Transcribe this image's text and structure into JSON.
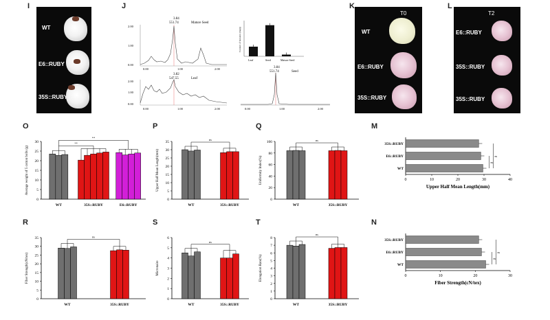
{
  "panels": {
    "I": {
      "letter": "I",
      "labels": [
        "WT",
        "E6::RUBY",
        "35S::RUBY"
      ]
    },
    "J": {
      "letter": "J",
      "top_left": {
        "peak_label": "3.84",
        "peak_sub": "551.74",
        "sample": "Mature Seed",
        "ticks": [
          "2.00",
          "1.00",
          "0.00"
        ],
        "xticks": [
          "0.00",
          "1.00",
          "2.00"
        ]
      },
      "bar_inset": {
        "ylabel": "Content of betalain (mg/g)",
        "categories": [
          "Leaf",
          "Seed",
          "Mature Seed"
        ],
        "values": [
          0.45,
          1.45,
          0.08
        ]
      },
      "bottom_left": {
        "peak_label": "3.82",
        "peak_sub": "547.55",
        "sample": "Leaf",
        "ticks": [
          "2.00",
          "1.00",
          "0.00"
        ],
        "xticks": [
          "0.00",
          "1.00",
          "2.00"
        ]
      },
      "bottom_right": {
        "peak_label": "3.84",
        "peak_sub": "551.74",
        "sample": "Seed",
        "xticks": [
          "0.00",
          "1.00",
          "2.00"
        ]
      }
    },
    "K": {
      "letter": "K",
      "title": "T0",
      "labels": [
        "WT",
        "E6::RUBY",
        "35S::RUBY"
      ]
    },
    "L": {
      "letter": "L",
      "title": "T2",
      "labels": [
        "E6::RUBY",
        "35S::RUBY",
        "35S::RUBY"
      ]
    },
    "O": {
      "letter": "O",
      "sig": "**"
    },
    "P": {
      "letter": "P",
      "sig": "ns"
    },
    "Q": {
      "letter": "Q",
      "sig": "ns"
    },
    "M": {
      "letter": "M",
      "sig": "ns"
    },
    "R": {
      "letter": "R",
      "sig": "ns"
    },
    "S": {
      "letter": "S",
      "sig": "ns"
    },
    "T": {
      "letter": "T",
      "sig": "ns"
    },
    "N": {
      "letter": "N",
      "sig": "ns"
    }
  },
  "colors": {
    "wt": "#6f6f6f",
    "s35": "#e01515",
    "e6": "#d21fd8",
    "hbar": "#8a8a8a"
  },
  "chart_data": [
    {
      "id": "O",
      "type": "bar",
      "ylabel": "Average weight of 5 cotton bolls (g)",
      "ylim": [
        0,
        30
      ],
      "yticks": [
        0,
        5,
        10,
        15,
        20,
        25,
        30
      ],
      "groups": [
        "WT",
        "35S::RUBY",
        "E6::RUBY"
      ],
      "bars": [
        {
          "group": 0,
          "values": [
            23.5,
            22.8,
            23.2
          ]
        },
        {
          "group": 1,
          "values": [
            20.3,
            22.8,
            23.5,
            24.0,
            24.5
          ]
        },
        {
          "group": 2,
          "values": [
            24.2,
            23.0,
            23.5,
            24.0
          ]
        }
      ]
    },
    {
      "id": "P",
      "type": "bar",
      "ylabel": "Upper Half Mean Length(mm)",
      "ylim": [
        0,
        35
      ],
      "yticks": [
        0,
        5,
        10,
        15,
        20,
        25,
        30,
        35
      ],
      "groups": [
        "WT",
        "35S::RUBY"
      ],
      "bars": [
        {
          "group": 0,
          "values": [
            30.0,
            29.2,
            29.8
          ]
        },
        {
          "group": 1,
          "values": [
            28.2,
            28.8,
            28.8
          ]
        }
      ]
    },
    {
      "id": "Q",
      "type": "bar",
      "ylabel": "Uniformity Index(%)",
      "ylim": [
        0,
        100
      ],
      "yticks": [
        0,
        20,
        40,
        60,
        80,
        100
      ],
      "groups": [
        "WT",
        "35S::RUBY"
      ],
      "bars": [
        {
          "group": 0,
          "values": [
            84.0,
            84.5,
            84.0
          ]
        },
        {
          "group": 1,
          "values": [
            84.0,
            84.5,
            84.0
          ]
        }
      ]
    },
    {
      "id": "M",
      "type": "hbar",
      "xlabel": "Upper Half Mean Length(mm)",
      "xlim": [
        0,
        40
      ],
      "xticks": [
        0,
        10,
        20,
        30,
        40
      ],
      "categories": [
        "35S::RUBY",
        "E6::RUBY",
        "WT"
      ],
      "values": [
        28.0,
        28.8,
        29.6
      ]
    },
    {
      "id": "R",
      "type": "bar",
      "ylabel": "Fiber Strength(cN/tex)",
      "ylim": [
        0,
        35
      ],
      "yticks": [
        0,
        5,
        10,
        15,
        20,
        25,
        30,
        35
      ],
      "groups": [
        "WT",
        "35S::RUBY"
      ],
      "bars": [
        {
          "group": 0,
          "values": [
            29.0,
            28.8,
            29.7
          ]
        },
        {
          "group": 1,
          "values": [
            27.5,
            28.0,
            27.8
          ]
        }
      ]
    },
    {
      "id": "S",
      "type": "bar",
      "ylabel": "Micronaire",
      "ylim": [
        0,
        6
      ],
      "yticks": [
        0,
        1,
        2,
        3,
        4,
        5,
        6
      ],
      "groups": [
        "WT",
        "35S::RUBY"
      ],
      "bars": [
        {
          "group": 0,
          "values": [
            4.5,
            4.2,
            4.6
          ]
        },
        {
          "group": 1,
          "values": [
            4.0,
            4.0,
            4.4
          ]
        }
      ]
    },
    {
      "id": "T",
      "type": "bar",
      "ylabel": "Elongation Rate(%)",
      "ylim": [
        0,
        8
      ],
      "yticks": [
        0,
        1,
        2,
        3,
        4,
        5,
        6,
        7,
        8
      ],
      "groups": [
        "WT",
        "35S::RUBY"
      ],
      "bars": [
        {
          "group": 0,
          "values": [
            7.0,
            6.9,
            7.1
          ]
        },
        {
          "group": 1,
          "values": [
            6.6,
            6.7,
            6.7
          ]
        }
      ]
    },
    {
      "id": "N",
      "type": "hbar",
      "xlabel": "Fiber Strength(cN/tex)",
      "xlim": [
        0,
        30
      ],
      "xticks": [
        0,
        10,
        20,
        30
      ],
      "categories": [
        "35S::RUBY",
        "E6::RUBY",
        "WT"
      ],
      "values": [
        21.0,
        21.8,
        23.0
      ]
    }
  ]
}
